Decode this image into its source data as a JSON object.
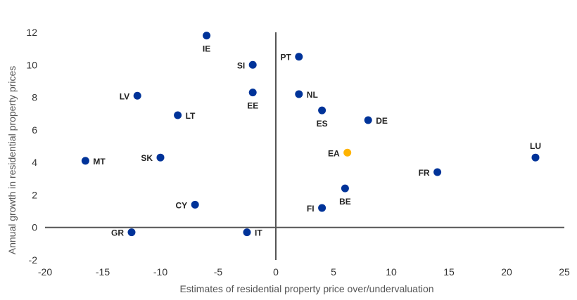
{
  "chart_data": {
    "type": "scatter",
    "title": "",
    "xlabel": "Estimates of residential property price over/undervaluation",
    "ylabel": "Annual growth in residential property prices",
    "xlim": [
      -20,
      25
    ],
    "ylim": [
      -2,
      12
    ],
    "xticks": [
      -20,
      -15,
      -10,
      -5,
      0,
      5,
      10,
      15,
      20,
      25
    ],
    "yticks": [
      -2,
      0,
      2,
      4,
      6,
      8,
      10,
      12
    ],
    "xtick_labels": [
      "-20",
      "-15",
      "-10",
      "-5",
      "0",
      "5",
      "10",
      "15",
      "20",
      "25"
    ],
    "ytick_labels": [
      "-2",
      "0",
      "2",
      "4",
      "6",
      "8",
      "10",
      "12"
    ],
    "grid": false,
    "colors": {
      "country": "#003399",
      "aggregate": "#FFB400",
      "axis": "#555555"
    },
    "points": [
      {
        "label": "IE",
        "x": -6.0,
        "y": 11.8,
        "group": "country",
        "label_pos": "below"
      },
      {
        "label": "SI",
        "x": -2.0,
        "y": 10.0,
        "group": "country",
        "label_pos": "left"
      },
      {
        "label": "PT",
        "x": 2.0,
        "y": 10.5,
        "group": "country",
        "label_pos": "left"
      },
      {
        "label": "LV",
        "x": -12.0,
        "y": 8.1,
        "group": "country",
        "label_pos": "left"
      },
      {
        "label": "EE",
        "x": -2.0,
        "y": 8.3,
        "group": "country",
        "label_pos": "below"
      },
      {
        "label": "NL",
        "x": 2.0,
        "y": 8.2,
        "group": "country",
        "label_pos": "right"
      },
      {
        "label": "LT",
        "x": -8.5,
        "y": 6.9,
        "group": "country",
        "label_pos": "right"
      },
      {
        "label": "ES",
        "x": 4.0,
        "y": 7.2,
        "group": "country",
        "label_pos": "below"
      },
      {
        "label": "DE",
        "x": 8.0,
        "y": 6.6,
        "group": "country",
        "label_pos": "right"
      },
      {
        "label": "MT",
        "x": -16.5,
        "y": 4.1,
        "group": "country",
        "label_pos": "right"
      },
      {
        "label": "SK",
        "x": -10.0,
        "y": 4.3,
        "group": "country",
        "label_pos": "left"
      },
      {
        "label": "EA",
        "x": 6.2,
        "y": 4.6,
        "group": "aggregate",
        "label_pos": "left"
      },
      {
        "label": "LU",
        "x": 22.5,
        "y": 4.3,
        "group": "country",
        "label_pos": "above"
      },
      {
        "label": "FR",
        "x": 14.0,
        "y": 3.4,
        "group": "country",
        "label_pos": "left"
      },
      {
        "label": "BE",
        "x": 6.0,
        "y": 2.4,
        "group": "country",
        "label_pos": "below"
      },
      {
        "label": "CY",
        "x": -7.0,
        "y": 1.4,
        "group": "country",
        "label_pos": "left"
      },
      {
        "label": "FI",
        "x": 4.0,
        "y": 1.2,
        "group": "country",
        "label_pos": "left"
      },
      {
        "label": "GR",
        "x": -12.5,
        "y": -0.3,
        "group": "country",
        "label_pos": "left"
      },
      {
        "label": "IT",
        "x": -2.5,
        "y": -0.3,
        "group": "country",
        "label_pos": "right"
      }
    ]
  }
}
